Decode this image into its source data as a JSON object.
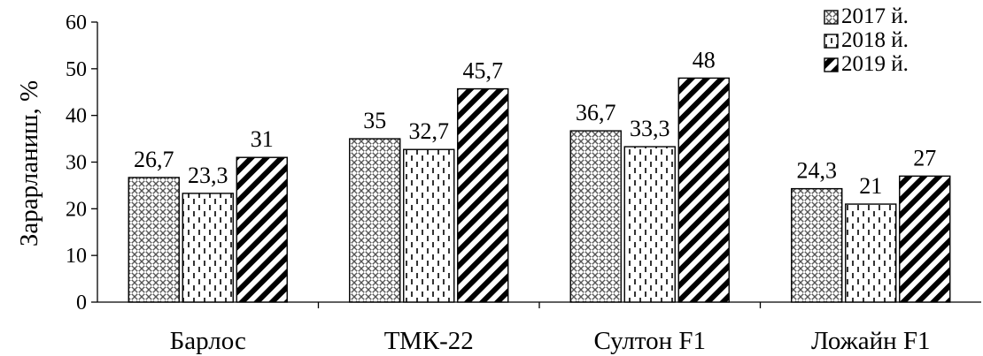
{
  "chart_data": {
    "type": "bar",
    "ylabel": "Зарарланиш, %",
    "xlabel": "",
    "ylim": [
      0,
      60
    ],
    "yticks": [
      0,
      10,
      20,
      30,
      40,
      50,
      60
    ],
    "grid": false,
    "legend_position": "top-right",
    "categories": [
      "Барлос",
      "ТМК-22",
      "Султон F1",
      "Ложайн F1"
    ],
    "series": [
      {
        "name": "2017 й.",
        "values": [
          26.7,
          35,
          36.7,
          24.3
        ],
        "labels": [
          "26,7",
          "35",
          "36,7",
          "24,3"
        ],
        "pattern": "crosshatch"
      },
      {
        "name": "2018 й.",
        "values": [
          23.3,
          32.7,
          33.3,
          21
        ],
        "labels": [
          "23,3",
          "32,7",
          "33,3",
          "21"
        ],
        "pattern": "dashed-vertical"
      },
      {
        "name": "2019 й.",
        "values": [
          31,
          45.7,
          48,
          27
        ],
        "labels": [
          "31",
          "45,7",
          "48",
          "27"
        ],
        "pattern": "diagonal-stripes"
      }
    ]
  }
}
